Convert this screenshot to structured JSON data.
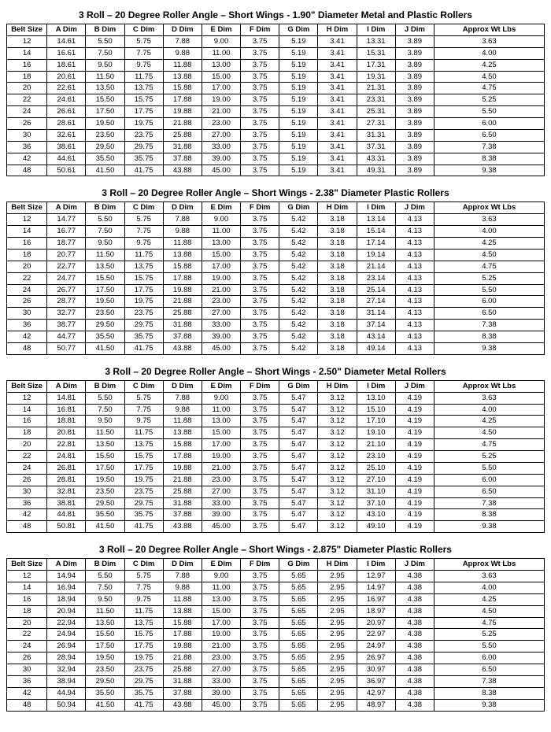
{
  "columns": [
    "Belt Size",
    "A Dim",
    "B Dim",
    "C Dim",
    "D Dim",
    "E Dim",
    "F Dim",
    "G Dim",
    "H Dim",
    "I Dim",
    "J Dim",
    "Approx  Wt Lbs"
  ],
  "belt_sizes": [
    "12",
    "14",
    "16",
    "18",
    "20",
    "22",
    "24",
    "26",
    "30",
    "36",
    "42",
    "48"
  ],
  "shared": {
    "B": [
      "5.50",
      "7.50",
      "9.50",
      "11.50",
      "13.50",
      "15.50",
      "17.50",
      "19.50",
      "23.50",
      "29.50",
      "35.50",
      "41.50"
    ],
    "C": [
      "5.75",
      "7.75",
      "9.75",
      "11.75",
      "13.75",
      "15.75",
      "17.75",
      "19.75",
      "23.75",
      "29.75",
      "35.75",
      "41.75"
    ],
    "D": [
      "7.88",
      "9.88",
      "11.88",
      "13.88",
      "15.88",
      "17.88",
      "19.88",
      "21.88",
      "25.88",
      "31.88",
      "37.88",
      "43.88"
    ],
    "E": [
      "9.00",
      "11.00",
      "13.00",
      "15.00",
      "17.00",
      "19.00",
      "21.00",
      "23.00",
      "27.00",
      "33.00",
      "39.00",
      "45.00"
    ],
    "F": [
      "3.75",
      "3.75",
      "3.75",
      "3.75",
      "3.75",
      "3.75",
      "3.75",
      "3.75",
      "3.75",
      "3.75",
      "3.75",
      "3.75"
    ],
    "Wt": [
      "3.63",
      "4.00",
      "4.25",
      "4.50",
      "4.75",
      "5.25",
      "5.50",
      "6.00",
      "6.50",
      "7.38",
      "8.38",
      "9.38"
    ]
  },
  "tables": [
    {
      "title": "3 Roll – 20 Degree Roller Angle – Short Wings - 1.90\" Diameter Metal and Plastic Rollers",
      "A": [
        "14.61",
        "16.61",
        "18.61",
        "20.61",
        "22.61",
        "24.61",
        "26.61",
        "28.61",
        "32.61",
        "38.61",
        "44.61",
        "50.61"
      ],
      "G": "5.19",
      "H": "3.41",
      "J": "3.89",
      "I": [
        "13.31",
        "15.31",
        "17.31",
        "19.31",
        "21.31",
        "23.31",
        "25.31",
        "27.31",
        "31.31",
        "37.31",
        "43.31",
        "49.31"
      ]
    },
    {
      "title": "3 Roll – 20 Degree Roller Angle – Short Wings - 2.38\" Diameter Plastic Rollers",
      "A": [
        "14.77",
        "16.77",
        "18.77",
        "20.77",
        "22.77",
        "24.77",
        "26.77",
        "28.77",
        "32.77",
        "38.77",
        "44.77",
        "50.77"
      ],
      "G": "5.42",
      "H": "3.18",
      "J": "4.13",
      "I": [
        "13.14",
        "15.14",
        "17.14",
        "19.14",
        "21.14",
        "23.14",
        "25.14",
        "27.14",
        "31.14",
        "37.14",
        "43.14",
        "49.14"
      ]
    },
    {
      "title": "3 Roll – 20 Degree Roller Angle – Short Wings - 2.50\" Diameter Metal Rollers",
      "A": [
        "14.81",
        "16.81",
        "18.81",
        "20.81",
        "22.81",
        "24.81",
        "26.81",
        "28.81",
        "32.81",
        "38.81",
        "44.81",
        "50.81"
      ],
      "G": "5.47",
      "H": "3.12",
      "J": "4.19",
      "I": [
        "13.10",
        "15.10",
        "17.10",
        "19.10",
        "21.10",
        "23.10",
        "25.10",
        "27.10",
        "31.10",
        "37.10",
        "43.10",
        "49.10"
      ]
    },
    {
      "title": "3 Roll – 20 Degree Roller Angle – Short Wings - 2.875\" Diameter Plastic Rollers",
      "A": [
        "14.94",
        "16.94",
        "18.94",
        "20.94",
        "22.94",
        "24.94",
        "26.94",
        "28.94",
        "32.94",
        "38.94",
        "44.94",
        "50.94"
      ],
      "G": "5.65",
      "H": "2.95",
      "J": "4.38",
      "I": [
        "12.97",
        "14.97",
        "16.97",
        "18.97",
        "20.97",
        "22.97",
        "24.97",
        "26.97",
        "30.97",
        "36.97",
        "42.97",
        "48.97"
      ]
    }
  ]
}
